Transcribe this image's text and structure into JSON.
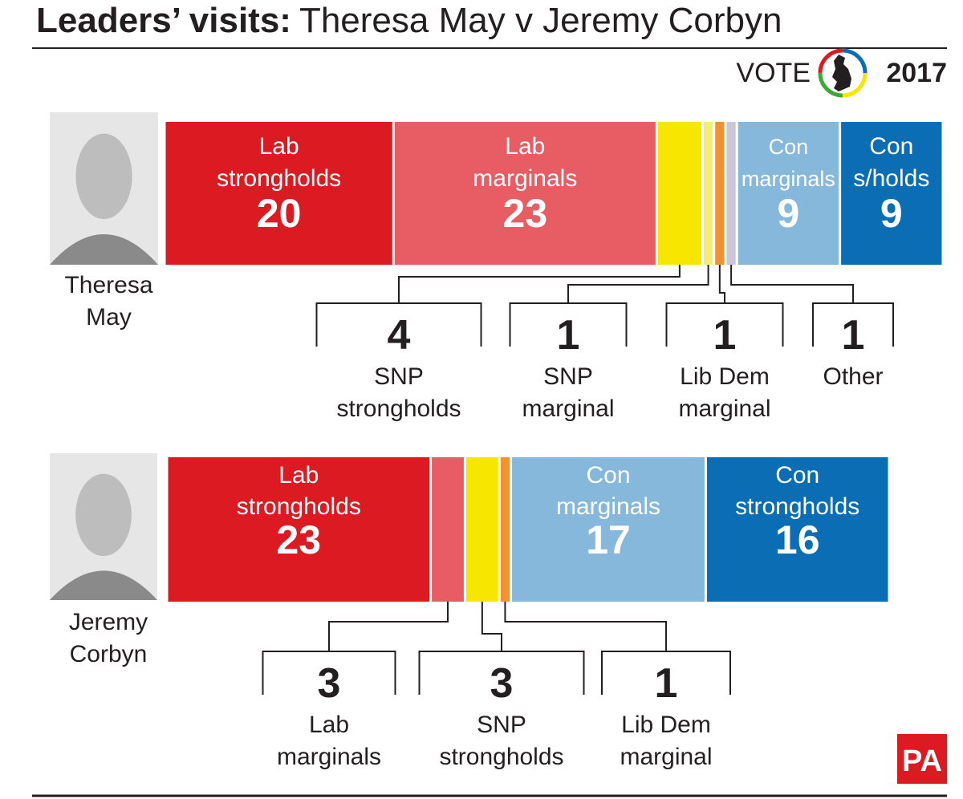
{
  "title_bold": "Leaders’ visits:",
  "title": "Theresa May v Jeremy Corbyn",
  "logo": {
    "vote": "VOTE",
    "year": "2017"
  },
  "credit": "PA",
  "chart_data": [
    {
      "type": "stacked-bar",
      "leader": "Theresa May",
      "categories": [
        "Lab strongholds",
        "Lab marginals",
        "SNP strongholds",
        "SNP marginal",
        "Lib Dem marginal",
        "Other",
        "Con marginals",
        "Con s/holds"
      ],
      "values": [
        20,
        23,
        4,
        1,
        1,
        1,
        9,
        9
      ],
      "colors": [
        "#dc1a21",
        "#e85d63",
        "#f7e600",
        "#f6ec78",
        "#f3922f",
        "#c9c6da",
        "#86b8dc",
        "#0b6db4"
      ]
    },
    {
      "type": "stacked-bar",
      "leader": "Jeremy Corbyn",
      "categories": [
        "Lab strongholds",
        "Lab marginals",
        "SNP strongholds",
        "Lib Dem marginal",
        "Con marginals",
        "Con strongholds"
      ],
      "values": [
        23,
        3,
        3,
        1,
        17,
        16
      ],
      "colors": [
        "#dc1a21",
        "#e85d63",
        "#f7e600",
        "#f3922f",
        "#86b8dc",
        "#0b6db4"
      ]
    }
  ]
}
